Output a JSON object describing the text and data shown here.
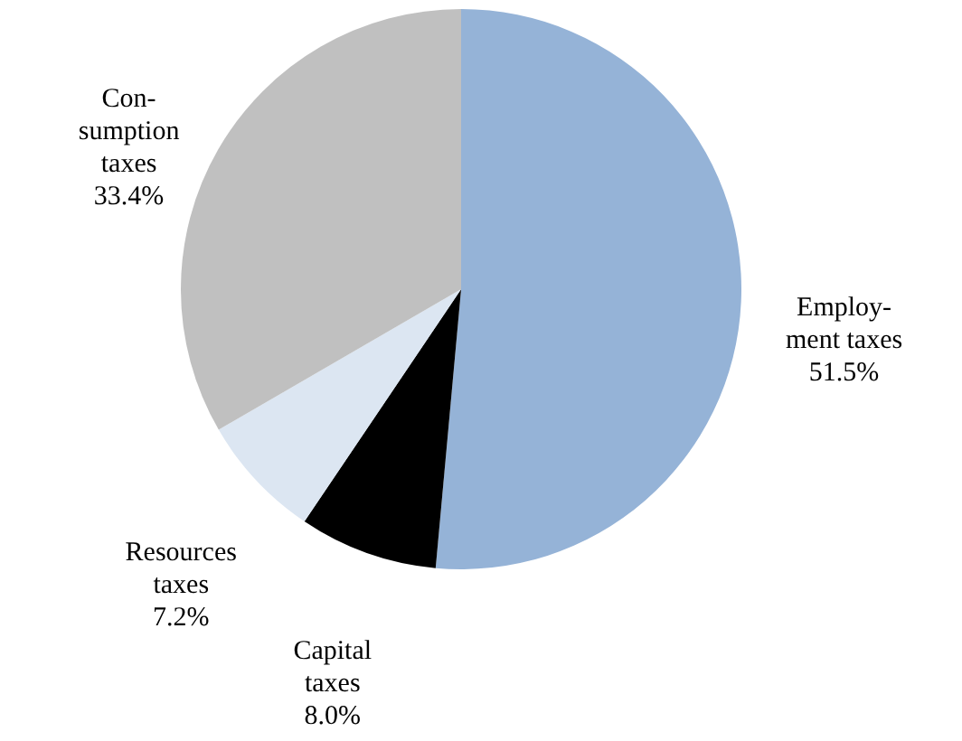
{
  "chart_data": {
    "type": "pie",
    "categories": [
      "Employ-\nment taxes",
      "Capital\ntaxes",
      "Resources\ntaxes",
      "Con-\nsumption\ntaxes"
    ],
    "values": [
      51.5,
      8.0,
      7.2,
      33.4
    ],
    "colors": [
      "#95b3d7",
      "#000000",
      "#dce6f2",
      "#c0c0c0"
    ],
    "value_labels": [
      "51.5%",
      "8.0%",
      "7.2%",
      "33.4%"
    ]
  }
}
